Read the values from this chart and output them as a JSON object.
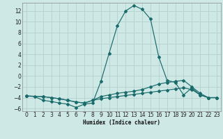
{
  "xlabel": "Humidex (Indice chaleur)",
  "ylabel": "",
  "background_color": "#cde8e5",
  "grid_color": "#b8d4d0",
  "line_color": "#1a6b6b",
  "xlim": [
    -0.5,
    23.5
  ],
  "ylim": [
    -6.5,
    13.5
  ],
  "xticks": [
    0,
    1,
    2,
    3,
    4,
    5,
    6,
    7,
    8,
    9,
    10,
    11,
    12,
    13,
    14,
    15,
    16,
    17,
    18,
    19,
    20,
    21,
    22,
    23
  ],
  "yticks": [
    -6,
    -4,
    -2,
    0,
    2,
    4,
    6,
    8,
    10,
    12
  ],
  "curve1_x": [
    0,
    1,
    2,
    3,
    4,
    5,
    6,
    7,
    8,
    9,
    10,
    11,
    12,
    13,
    14,
    15,
    16,
    17,
    18,
    19,
    20,
    21,
    22,
    23
  ],
  "curve1_y": [
    -3.7,
    -3.8,
    -4.5,
    -4.7,
    -5.0,
    -5.2,
    -5.8,
    -5.2,
    -5.0,
    -1.0,
    4.2,
    9.3,
    12.0,
    13.0,
    12.3,
    10.5,
    3.5,
    -0.8,
    -1.2,
    -3.5,
    -2.2,
    -3.5,
    -4.0,
    -4.0
  ],
  "curve2_x": [
    0,
    2,
    3,
    4,
    5,
    6,
    7,
    8,
    9,
    10,
    11,
    12,
    13,
    14,
    15,
    16,
    17,
    18,
    19,
    20,
    21,
    22,
    23
  ],
  "curve2_y": [
    -3.7,
    -3.8,
    -4.0,
    -4.2,
    -4.5,
    -4.8,
    -5.0,
    -4.5,
    -3.8,
    -3.5,
    -3.2,
    -3.0,
    -2.8,
    -2.5,
    -2.0,
    -1.5,
    -1.2,
    -1.0,
    -0.8,
    -2.0,
    -3.2,
    -4.0,
    -4.0
  ],
  "curve3_x": [
    0,
    2,
    3,
    4,
    5,
    6,
    7,
    8,
    9,
    10,
    11,
    12,
    13,
    14,
    15,
    16,
    17,
    18,
    19,
    20,
    21,
    22,
    23
  ],
  "curve3_y": [
    -3.7,
    -3.8,
    -4.0,
    -4.2,
    -4.5,
    -4.8,
    -5.0,
    -4.5,
    -4.2,
    -4.0,
    -3.8,
    -3.6,
    -3.4,
    -3.2,
    -3.0,
    -2.8,
    -2.6,
    -2.4,
    -2.2,
    -2.5,
    -3.5,
    -4.0,
    -4.0
  ]
}
